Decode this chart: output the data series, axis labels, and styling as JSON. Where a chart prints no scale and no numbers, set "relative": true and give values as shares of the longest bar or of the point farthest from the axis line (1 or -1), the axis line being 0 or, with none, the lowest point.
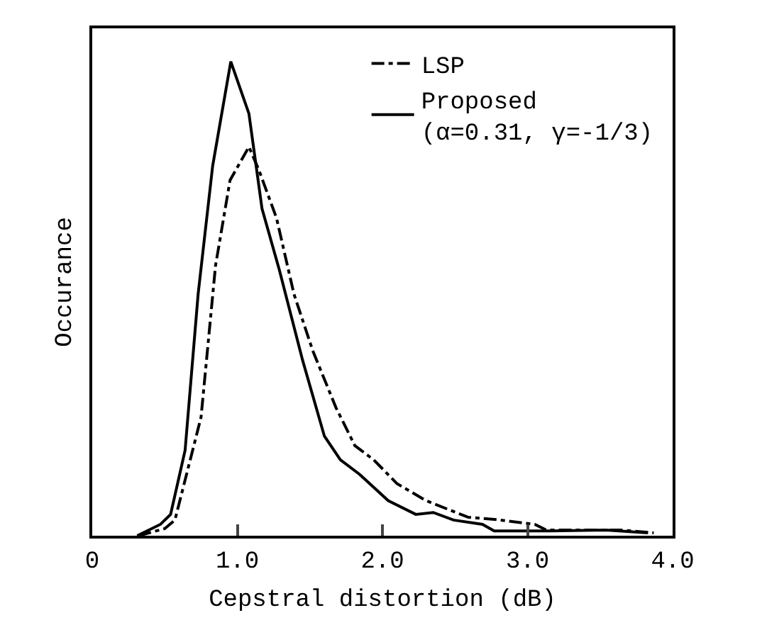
{
  "chart_data": {
    "type": "line",
    "relative": true,
    "xlabel": "Cepstral distortion (dB)",
    "ylabel": "Occurance",
    "xlim": [
      0,
      4
    ],
    "xticks": [
      0,
      {
        "value": 1,
        "label": "1.0"
      },
      {
        "value": 2,
        "label": "2.0"
      },
      {
        "value": 3,
        "label": "3.0"
      },
      {
        "value": 4,
        "label": "4.0"
      }
    ],
    "grid": false,
    "legend": "top right",
    "marker": "none",
    "series": [
      {
        "name": "LSP",
        "color": "#000000",
        "line_style": "dashdot",
        "x": [
          0.32,
          0.5,
          0.57,
          0.75,
          0.85,
          0.95,
          1.08,
          1.15,
          1.27,
          1.39,
          1.52,
          1.68,
          1.81,
          1.94,
          2.1,
          2.3,
          2.59,
          2.79,
          3.05,
          3.13,
          3.64,
          3.87
        ],
        "values": [
          0,
          0.015,
          0.033,
          0.25,
          0.57,
          0.75,
          0.82,
          0.77,
          0.67,
          0.51,
          0.39,
          0.27,
          0.19,
          0.16,
          0.11,
          0.074,
          0.039,
          0.034,
          0.024,
          0.012,
          0.012,
          0.006
        ]
      },
      {
        "name": "Proposed\n(α=0.31, γ=-1/3)",
        "color": "#000000",
        "line_style": "solid",
        "x": [
          0.31,
          0.47,
          0.54,
          0.64,
          0.73,
          0.83,
          0.955,
          1.08,
          1.17,
          1.29,
          1.45,
          1.6,
          1.71,
          1.84,
          2.04,
          2.23,
          2.35,
          2.49,
          2.69,
          2.77,
          3.15,
          3.54,
          3.83
        ],
        "values": [
          0,
          0.024,
          0.045,
          0.18,
          0.51,
          0.78,
          1,
          0.89,
          0.69,
          0.56,
          0.37,
          0.21,
          0.16,
          0.13,
          0.074,
          0.045,
          0.049,
          0.033,
          0.024,
          0.01,
          0.01,
          0.012,
          0.006
        ]
      }
    ]
  }
}
